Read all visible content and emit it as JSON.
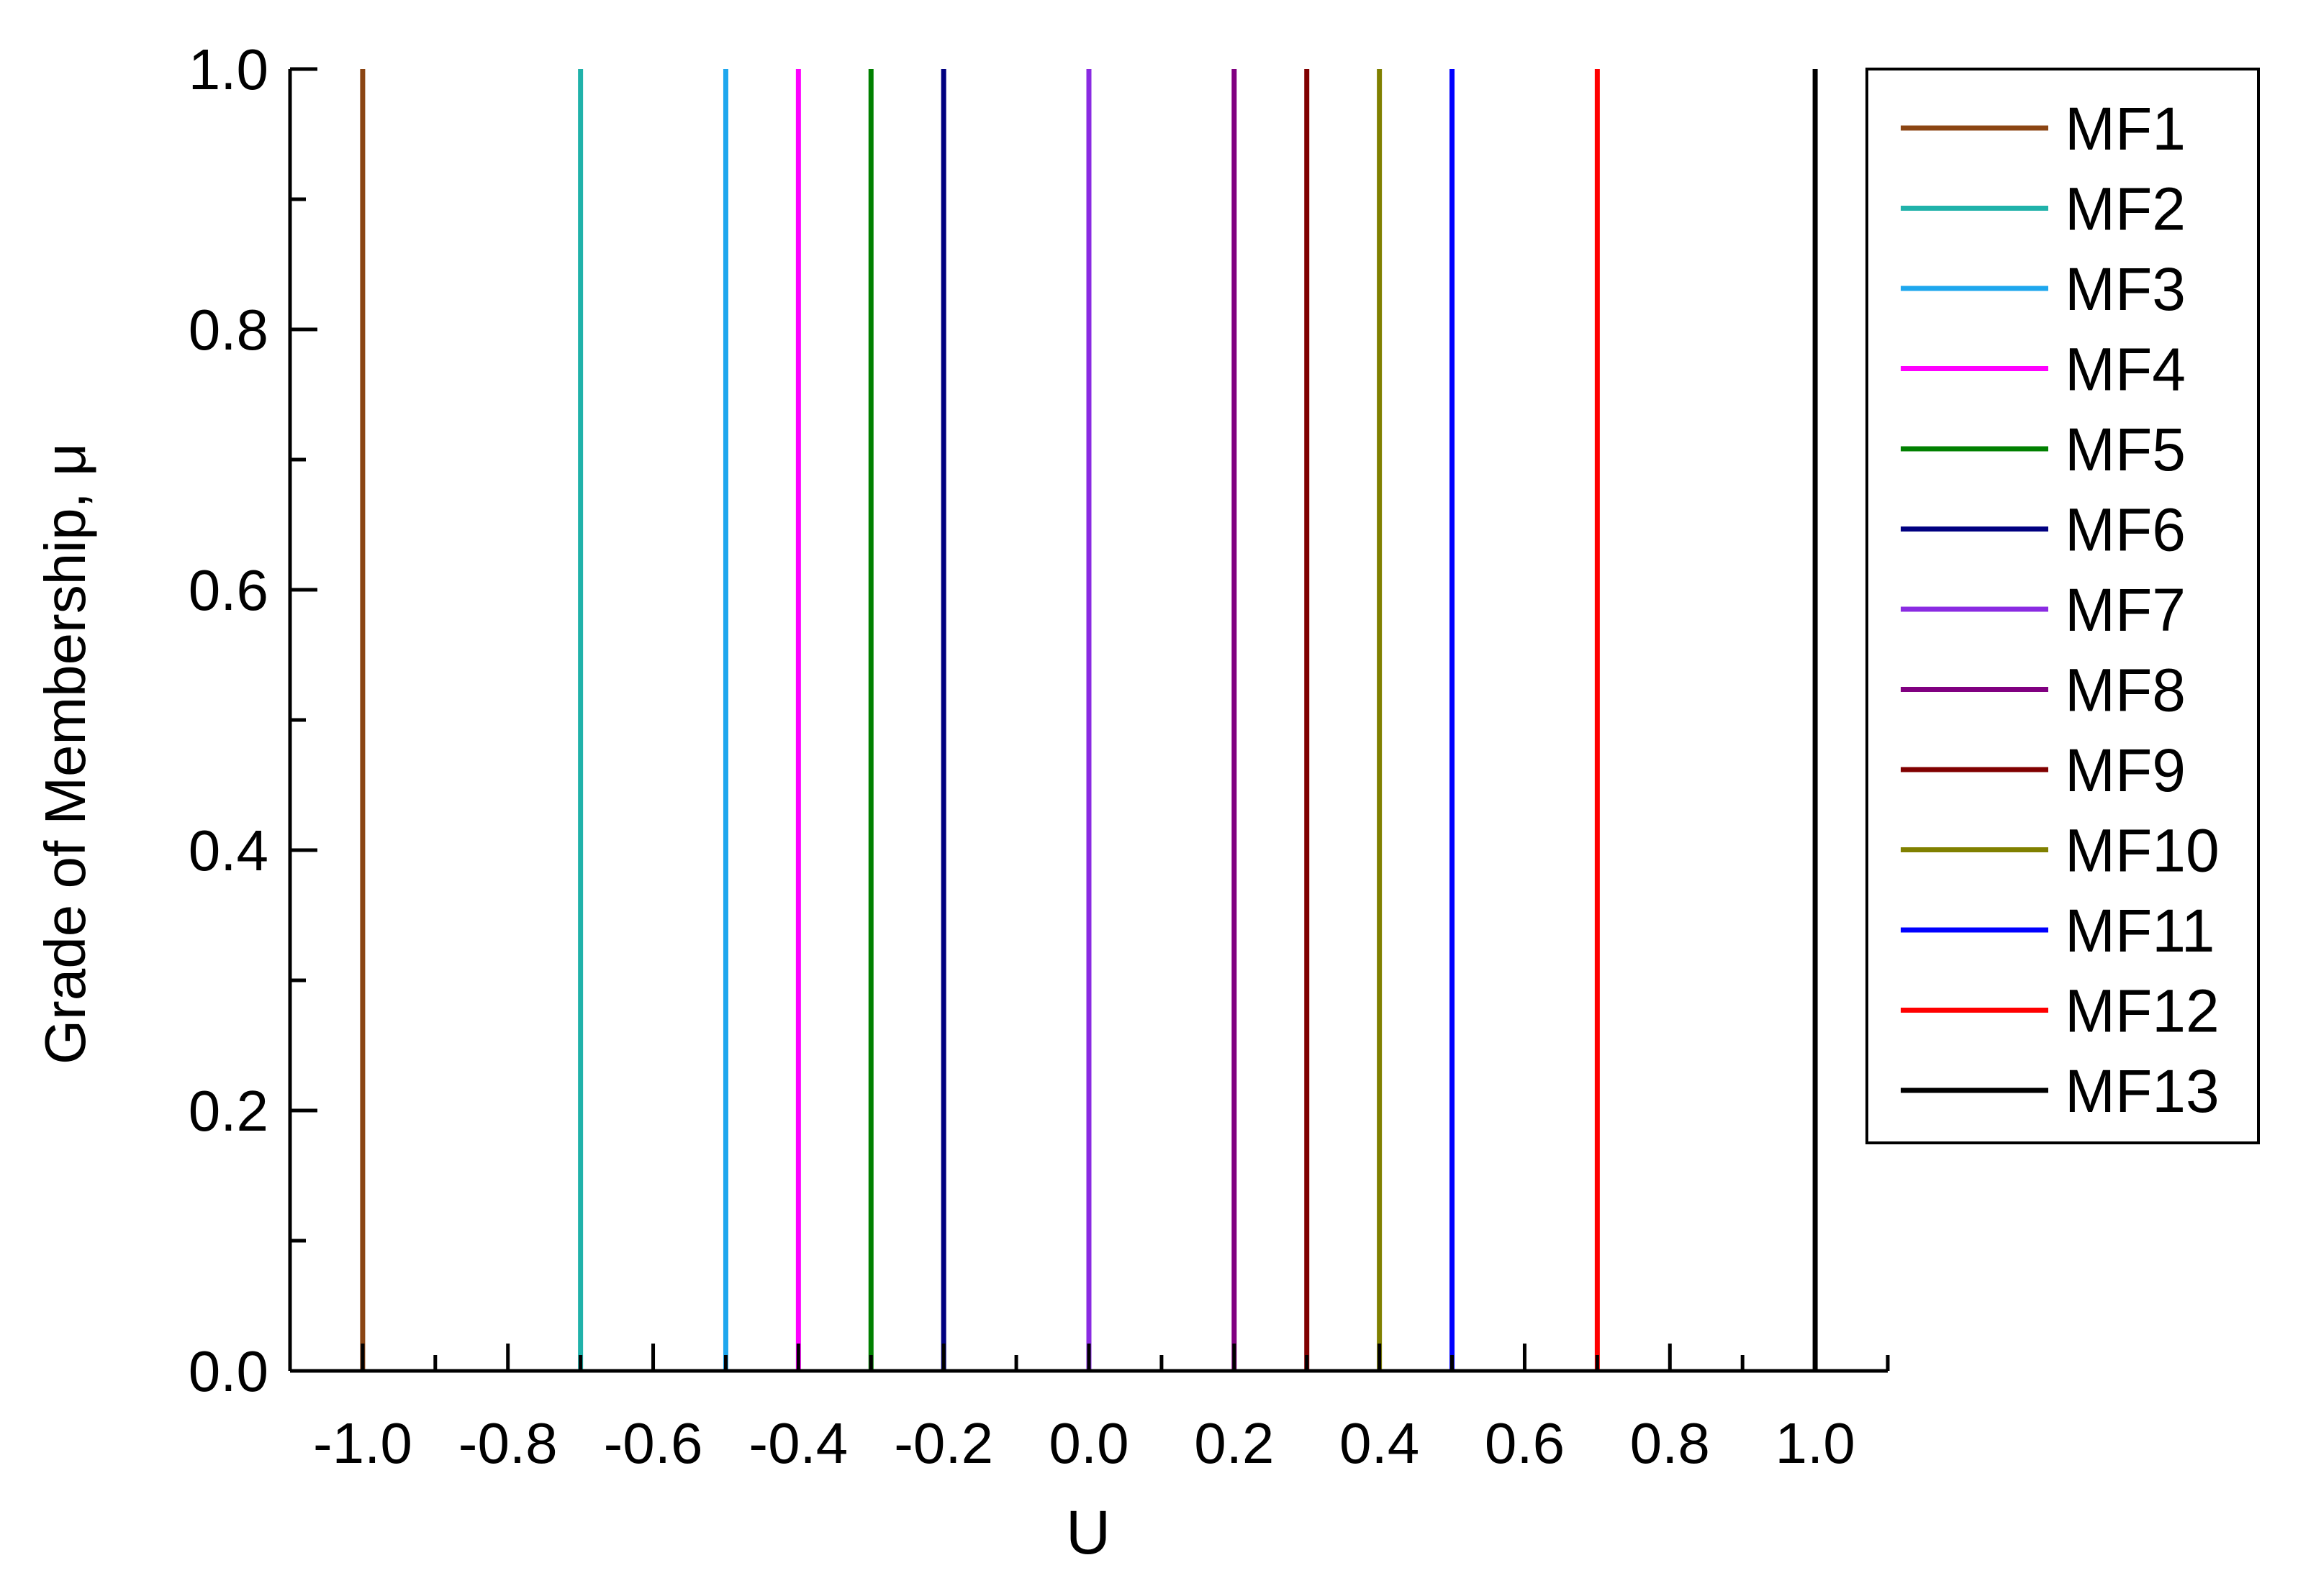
{
  "chart_data": {
    "type": "line",
    "title": "",
    "xlabel": "U",
    "ylabel": "Grade of Membership, μ",
    "xlim": [
      -1.1,
      1.1
    ],
    "ylim": [
      0.0,
      1.0
    ],
    "x_ticks": [
      -1.0,
      -0.8,
      -0.6,
      -0.4,
      -0.2,
      0.0,
      0.2,
      0.4,
      0.6,
      0.8,
      1.0
    ],
    "x_tick_labels": [
      "-1.0",
      "-0.8",
      "-0.6",
      "-0.4",
      "-0.2",
      "0.0",
      "0.2",
      "0.4",
      "0.6",
      "0.8",
      "1.0"
    ],
    "y_ticks": [
      0.0,
      0.2,
      0.4,
      0.6,
      0.8,
      1.0
    ],
    "y_tick_labels": [
      "0.0",
      "0.2",
      "0.4",
      "0.6",
      "0.8",
      "1.0"
    ],
    "grid": false,
    "legend_position": "right",
    "series": [
      {
        "name": "MF1",
        "color": "#8B4513",
        "x": [
          -1.0,
          -1.0
        ],
        "y": [
          0,
          1
        ]
      },
      {
        "name": "MF2",
        "color": "#20B2AA",
        "x": [
          -0.7,
          -0.7
        ],
        "y": [
          0,
          1
        ]
      },
      {
        "name": "MF3",
        "color": "#1EA7EE",
        "x": [
          -0.5,
          -0.5
        ],
        "y": [
          0,
          1
        ]
      },
      {
        "name": "MF4",
        "color": "#FF00FF",
        "x": [
          -0.4,
          -0.4
        ],
        "y": [
          0,
          1
        ]
      },
      {
        "name": "MF5",
        "color": "#008000",
        "x": [
          -0.3,
          -0.3
        ],
        "y": [
          0,
          1
        ]
      },
      {
        "name": "MF6",
        "color": "#000080",
        "x": [
          -0.2,
          -0.2
        ],
        "y": [
          0,
          1
        ]
      },
      {
        "name": "MF7",
        "color": "#8A2BE2",
        "x": [
          0.0,
          0.0
        ],
        "y": [
          0,
          1
        ]
      },
      {
        "name": "MF8",
        "color": "#800080",
        "x": [
          0.2,
          0.2
        ],
        "y": [
          0,
          1
        ]
      },
      {
        "name": "MF9",
        "color": "#800000",
        "x": [
          0.3,
          0.3
        ],
        "y": [
          0,
          1
        ]
      },
      {
        "name": "MF10",
        "color": "#808000",
        "x": [
          0.4,
          0.4
        ],
        "y": [
          0,
          1
        ]
      },
      {
        "name": "MF11",
        "color": "#0000FF",
        "x": [
          0.5,
          0.5
        ],
        "y": [
          0,
          1
        ]
      },
      {
        "name": "MF12",
        "color": "#FF0000",
        "x": [
          0.7,
          0.7
        ],
        "y": [
          0,
          1
        ]
      },
      {
        "name": "MF13",
        "color": "#000000",
        "x": [
          1.0,
          1.0
        ],
        "y": [
          0,
          1
        ]
      }
    ]
  }
}
